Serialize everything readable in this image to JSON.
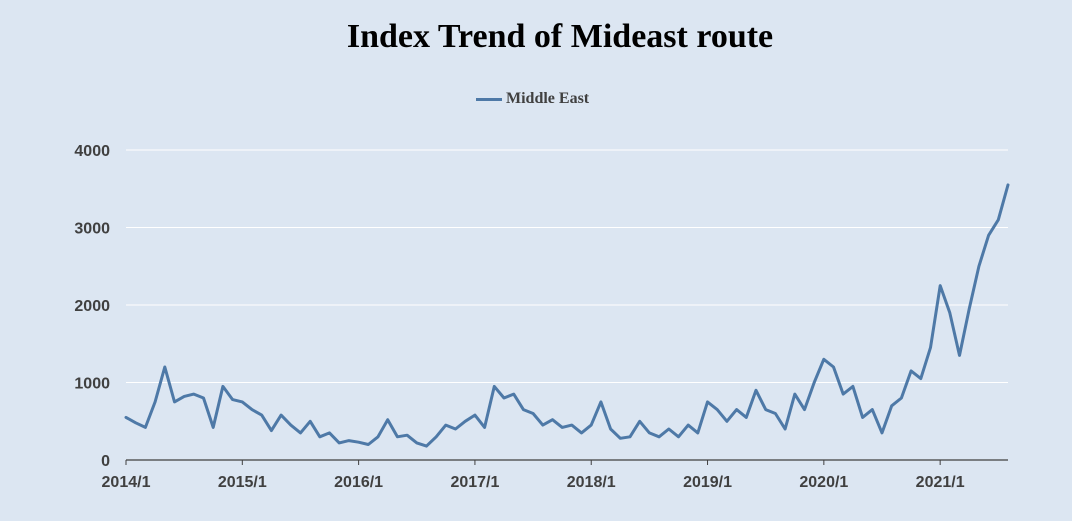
{
  "chart_data": {
    "type": "line",
    "title": "Index Trend of Mideast route",
    "xlabel": "",
    "ylabel": "",
    "ylim": [
      0,
      4000
    ],
    "yticks": [
      0,
      1000,
      2000,
      3000,
      4000
    ],
    "xticks": [
      "2014/1",
      "2015/1",
      "2016/1",
      "2017/1",
      "2018/1",
      "2019/1",
      "2020/1",
      "2021/1"
    ],
    "x_range": [
      "2014/1",
      "2021/8"
    ],
    "grid": "horizontal",
    "legend": "top-center",
    "colors": {
      "line": "#4e79a7",
      "background": "#dce6f2",
      "grid": "#ffffff"
    },
    "series": [
      {
        "name": "Middle East",
        "x": [
          "2014/1",
          "2014/2",
          "2014/3",
          "2014/4",
          "2014/5",
          "2014/6",
          "2014/7",
          "2014/8",
          "2014/9",
          "2014/10",
          "2014/11",
          "2014/12",
          "2015/1",
          "2015/2",
          "2015/3",
          "2015/4",
          "2015/5",
          "2015/6",
          "2015/7",
          "2015/8",
          "2015/9",
          "2015/10",
          "2015/11",
          "2015/12",
          "2016/1",
          "2016/2",
          "2016/3",
          "2016/4",
          "2016/5",
          "2016/6",
          "2016/7",
          "2016/8",
          "2016/9",
          "2016/10",
          "2016/11",
          "2016/12",
          "2017/1",
          "2017/2",
          "2017/3",
          "2017/4",
          "2017/5",
          "2017/6",
          "2017/7",
          "2017/8",
          "2017/9",
          "2017/10",
          "2017/11",
          "2017/12",
          "2018/1",
          "2018/2",
          "2018/3",
          "2018/4",
          "2018/5",
          "2018/6",
          "2018/7",
          "2018/8",
          "2018/9",
          "2018/10",
          "2018/11",
          "2018/12",
          "2019/1",
          "2019/2",
          "2019/3",
          "2019/4",
          "2019/5",
          "2019/6",
          "2019/7",
          "2019/8",
          "2019/9",
          "2019/10",
          "2019/11",
          "2019/12",
          "2020/1",
          "2020/2",
          "2020/3",
          "2020/4",
          "2020/5",
          "2020/6",
          "2020/7",
          "2020/8",
          "2020/9",
          "2020/10",
          "2020/11",
          "2020/12",
          "2021/1",
          "2021/2",
          "2021/3",
          "2021/4",
          "2021/5",
          "2021/6",
          "2021/7",
          "2021/8"
        ],
        "values": [
          550,
          480,
          420,
          750,
          1200,
          750,
          820,
          850,
          800,
          420,
          950,
          780,
          750,
          650,
          580,
          380,
          580,
          450,
          350,
          500,
          300,
          350,
          220,
          250,
          230,
          200,
          300,
          520,
          300,
          320,
          220,
          180,
          300,
          450,
          400,
          500,
          580,
          420,
          950,
          800,
          850,
          650,
          600,
          450,
          520,
          420,
          450,
          350,
          450,
          750,
          400,
          280,
          300,
          500,
          350,
          300,
          400,
          300,
          450,
          350,
          750,
          650,
          500,
          650,
          550,
          900,
          650,
          600,
          400,
          850,
          650,
          1000,
          1300,
          1200,
          850,
          950,
          550,
          650,
          350,
          700,
          800,
          1150,
          1050,
          1450,
          2250,
          1900,
          1350,
          1950,
          2500,
          2900,
          3100,
          3550
        ]
      }
    ]
  }
}
